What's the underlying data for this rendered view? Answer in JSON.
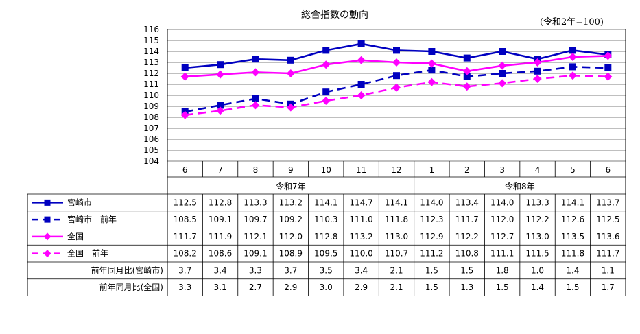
{
  "chart_data": {
    "type": "line",
    "title": "総合指数の動向",
    "note": "(令和2年=100)",
    "ylim": [
      104,
      116
    ],
    "yticks": [
      "116",
      "115",
      "114",
      "113",
      "112",
      "111",
      "110",
      "109",
      "108",
      "107",
      "106",
      "105",
      "104"
    ],
    "categories": [
      "6",
      "7",
      "8",
      "9",
      "10",
      "11",
      "12",
      "1",
      "2",
      "3",
      "4",
      "5",
      "6"
    ],
    "eras": [
      {
        "label": "令和7年",
        "span": 7
      },
      {
        "label": "令和8年",
        "span": 6
      }
    ],
    "grid": true,
    "series": [
      {
        "name": "宮崎市",
        "color": "#0000c0",
        "dash": false,
        "marker": "square",
        "values": [
          112.5,
          112.8,
          113.3,
          113.2,
          114.1,
          114.7,
          114.1,
          114.0,
          113.4,
          114.0,
          113.3,
          114.1,
          113.7
        ],
        "labels": [
          "112.5",
          "112.8",
          "113.3",
          "113.2",
          "114.1",
          "114.7",
          "114.1",
          "114.0",
          "113.4",
          "114.0",
          "113.3",
          "114.1",
          "113.7"
        ]
      },
      {
        "name": "宮崎市　前年",
        "color": "#0000c0",
        "dash": true,
        "marker": "square",
        "values": [
          108.5,
          109.1,
          109.7,
          109.2,
          110.3,
          111.0,
          111.8,
          112.3,
          111.7,
          112.0,
          112.2,
          112.6,
          112.5
        ],
        "labels": [
          "108.5",
          "109.1",
          "109.7",
          "109.2",
          "110.3",
          "111.0",
          "111.8",
          "112.3",
          "111.7",
          "112.0",
          "112.2",
          "112.6",
          "112.5"
        ]
      },
      {
        "name": "全国",
        "color": "#ff00ff",
        "dash": false,
        "marker": "diamond",
        "values": [
          111.7,
          111.9,
          112.1,
          112.0,
          112.8,
          113.2,
          113.0,
          112.9,
          112.2,
          112.7,
          113.0,
          113.5,
          113.6
        ],
        "labels": [
          "111.7",
          "111.9",
          "112.1",
          "112.0",
          "112.8",
          "113.2",
          "113.0",
          "112.9",
          "112.2",
          "112.7",
          "113.0",
          "113.5",
          "113.6"
        ]
      },
      {
        "name": "全国　前年",
        "color": "#ff00ff",
        "dash": true,
        "marker": "diamond",
        "values": [
          108.2,
          108.6,
          109.1,
          108.9,
          109.5,
          110.0,
          110.7,
          111.2,
          110.8,
          111.1,
          111.5,
          111.8,
          111.7
        ],
        "labels": [
          "108.2",
          "108.6",
          "109.1",
          "108.9",
          "109.5",
          "110.0",
          "110.7",
          "111.2",
          "110.8",
          "111.1",
          "111.5",
          "111.8",
          "111.7"
        ]
      }
    ],
    "extra_rows": [
      {
        "name": "前年同月比(宮崎市)",
        "values": [
          "3.7",
          "3.4",
          "3.3",
          "3.7",
          "3.5",
          "3.4",
          "2.1",
          "1.5",
          "1.5",
          "1.8",
          "1.0",
          "1.4",
          "1.1"
        ]
      },
      {
        "name": "前年同月比(全国)",
        "values": [
          "3.3",
          "3.1",
          "2.7",
          "2.9",
          "3.0",
          "2.9",
          "2.1",
          "1.5",
          "1.3",
          "1.5",
          "1.4",
          "1.5",
          "1.7"
        ]
      }
    ]
  }
}
